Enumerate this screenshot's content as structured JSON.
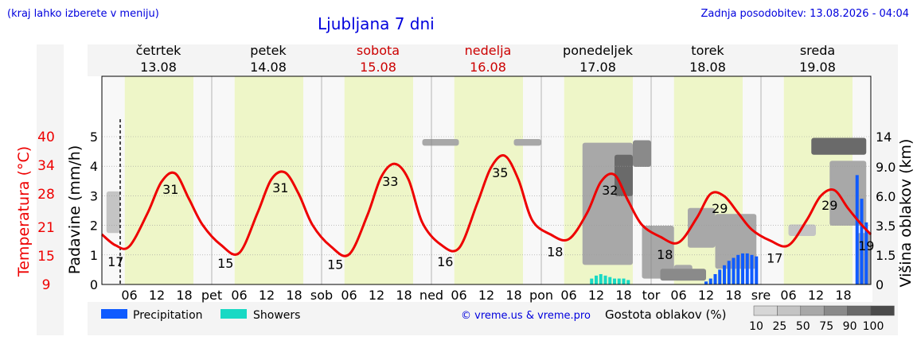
{
  "header": {
    "location_hint": "(kraj lahko izberete v meniju)",
    "title": "Ljubljana 7 dni",
    "updated": "Zadnja posodobitev: 13.08.2026 - 04:04"
  },
  "days": [
    {
      "name": "četrtek",
      "date": "13.08",
      "color": "#000000",
      "short": ""
    },
    {
      "name": "petek",
      "date": "14.08",
      "color": "#000000",
      "short": "pet"
    },
    {
      "name": "sobota",
      "date": "15.08",
      "color": "#cc0000",
      "short": "sob"
    },
    {
      "name": "nedelja",
      "date": "16.08",
      "color": "#cc0000",
      "short": "ned"
    },
    {
      "name": "ponedeljek",
      "date": "17.08",
      "color": "#000000",
      "short": "pon"
    },
    {
      "name": "torek",
      "date": "18.08",
      "color": "#000000",
      "short": "tor"
    },
    {
      "name": "sreda",
      "date": "19.08",
      "color": "#000000",
      "short": "sre"
    }
  ],
  "weather_icons": [
    [
      "moon-cloud-icon",
      "sun-icon",
      "sun-icon",
      "moon-icon"
    ],
    [
      "moon-icon",
      "sun-icon",
      "sun-icon",
      "moon-icon"
    ],
    [
      "moon-icon",
      "sun-icon",
      "sun-icon",
      "moon-icon"
    ],
    [
      "moon-cloud-icon",
      "sun-icon",
      "sun-cloud-icon",
      "moon-cloud-icon"
    ],
    [
      "moon-cloud-icon",
      "sun-storm-icon",
      "sun-storm-icon",
      "moon-storm-icon"
    ],
    [
      "fog-icon",
      "sun-cloud-icon",
      "sun-rain-cloud-icon",
      "rain-cloud-icon"
    ],
    [
      "moon-cloud-icon",
      "sun-cloud-icon",
      "sun-cloud-icon",
      "rain-cloud-icon"
    ]
  ],
  "chart_data": {
    "type": "line",
    "x_tick_labels": [
      "06",
      "12",
      "18"
    ],
    "left_axis_temp": {
      "label": "Temperatura (°C)",
      "ticks": [
        9,
        15,
        21,
        28,
        34,
        40
      ],
      "color": "#ee0000"
    },
    "left_axis_precip": {
      "label": "Padavine (mm/h)",
      "ticks": [
        0,
        1,
        2,
        3,
        4,
        5
      ],
      "ylim": [
        0,
        5
      ]
    },
    "right_axis_cloud": {
      "label": "Višina oblakov (km)",
      "ticks": [
        "0",
        "1.5",
        "3.5",
        "6.0",
        "9.0",
        "14"
      ]
    },
    "temperature_hourly": [
      [
        0,
        19.5
      ],
      [
        3,
        17.2
      ],
      [
        6,
        17.0
      ],
      [
        10,
        24.0
      ],
      [
        13,
        30.5
      ],
      [
        16,
        32.3
      ],
      [
        19,
        27.0
      ],
      [
        22,
        21.5
      ],
      [
        26,
        17.3
      ],
      [
        30,
        15.6
      ],
      [
        34,
        24.0
      ],
      [
        37,
        31.0
      ],
      [
        40,
        32.5
      ],
      [
        43,
        28.0
      ],
      [
        46,
        21.5
      ],
      [
        50,
        17.0
      ],
      [
        54,
        15.3
      ],
      [
        58,
        23.5
      ],
      [
        61,
        31.5
      ],
      [
        64,
        34.3
      ],
      [
        67,
        31.0
      ],
      [
        70,
        22.0
      ],
      [
        74,
        17.4
      ],
      [
        78,
        16.6
      ],
      [
        82,
        26.0
      ],
      [
        85,
        33.5
      ],
      [
        88,
        36.0
      ],
      [
        91,
        31.0
      ],
      [
        94,
        22.5
      ],
      [
        98,
        19.5
      ],
      [
        102,
        18.5
      ],
      [
        106,
        24.0
      ],
      [
        109,
        30.5
      ],
      [
        112,
        32.0
      ],
      [
        115,
        26.5
      ],
      [
        118,
        21.5
      ],
      [
        122,
        19.0
      ],
      [
        126,
        17.8
      ],
      [
        130,
        23.0
      ],
      [
        133,
        28.0
      ],
      [
        136,
        27.5
      ],
      [
        139,
        24.0
      ],
      [
        142,
        20.5
      ],
      [
        146,
        18.2
      ],
      [
        150,
        17.2
      ],
      [
        154,
        22.5
      ],
      [
        157,
        27.5
      ],
      [
        160,
        28.8
      ],
      [
        163,
        25.0
      ],
      [
        166,
        21.5
      ],
      [
        168,
        19.5
      ]
    ],
    "temperature_labels": [
      {
        "hour": 3,
        "value": "17"
      },
      {
        "hour": 15,
        "value": "31"
      },
      {
        "hour": 27,
        "value": "15"
      },
      {
        "hour": 39,
        "value": "31"
      },
      {
        "hour": 51,
        "value": "15"
      },
      {
        "hour": 63,
        "value": "33"
      },
      {
        "hour": 75,
        "value": "16"
      },
      {
        "hour": 87,
        "value": "35"
      },
      {
        "hour": 99,
        "value": "18"
      },
      {
        "hour": 111,
        "value": "32"
      },
      {
        "hour": 123,
        "value": "18"
      },
      {
        "hour": 135,
        "value": "29"
      },
      {
        "hour": 147,
        "value": "17"
      },
      {
        "hour": 159,
        "value": "29"
      },
      {
        "hour": 167,
        "value": "19"
      }
    ],
    "precipitation": [
      {
        "hour": 132,
        "value": 0.1
      },
      {
        "hour": 133,
        "value": 0.2
      },
      {
        "hour": 134,
        "value": 0.35
      },
      {
        "hour": 135,
        "value": 0.5
      },
      {
        "hour": 136,
        "value": 0.65
      },
      {
        "hour": 137,
        "value": 0.8
      },
      {
        "hour": 138,
        "value": 0.9
      },
      {
        "hour": 139,
        "value": 1.0
      },
      {
        "hour": 140,
        "value": 1.05
      },
      {
        "hour": 141,
        "value": 1.05
      },
      {
        "hour": 142,
        "value": 1.0
      },
      {
        "hour": 143,
        "value": 0.95
      },
      {
        "hour": 165,
        "value": 3.7
      },
      {
        "hour": 166,
        "value": 2.9
      },
      {
        "hour": 167,
        "value": 2.1
      }
    ],
    "showers": [
      {
        "hour": 107,
        "value": 0.2
      },
      {
        "hour": 108,
        "value": 0.3
      },
      {
        "hour": 109,
        "value": 0.35
      },
      {
        "hour": 110,
        "value": 0.3
      },
      {
        "hour": 111,
        "value": 0.25
      },
      {
        "hour": 112,
        "value": 0.2
      },
      {
        "hour": 113,
        "value": 0.2
      },
      {
        "hour": 114,
        "value": 0.2
      },
      {
        "hour": 115,
        "value": 0.15
      }
    ],
    "cloud_blocks": [
      {
        "h0": 1,
        "h1": 4,
        "km0": 3.0,
        "km1": 6.5,
        "d": 25
      },
      {
        "h0": 70,
        "h1": 78,
        "km0": 12.5,
        "km1": 13.6,
        "d": 50
      },
      {
        "h0": 90,
        "h1": 96,
        "km0": 12.5,
        "km1": 13.6,
        "d": 50
      },
      {
        "h0": 105,
        "h1": 116,
        "km0": 1.0,
        "km1": 13.0,
        "d": 50
      },
      {
        "h0": 112,
        "h1": 116,
        "km0": 6.0,
        "km1": 11.0,
        "d": 90
      },
      {
        "h0": 116,
        "h1": 120,
        "km0": 9.0,
        "km1": 13.4,
        "d": 75
      },
      {
        "h0": 118,
        "h1": 125,
        "km0": 0.3,
        "km1": 3.5,
        "d": 50
      },
      {
        "h0": 125,
        "h1": 129,
        "km0": 0.2,
        "km1": 1.0,
        "d": 50
      },
      {
        "h0": 122,
        "h1": 132,
        "km0": 0.2,
        "km1": 0.8,
        "d": 75
      },
      {
        "h0": 128,
        "h1": 134,
        "km0": 2.0,
        "km1": 5.0,
        "d": 50
      },
      {
        "h0": 134,
        "h1": 143,
        "km0": 0.8,
        "km1": 4.5,
        "d": 50
      },
      {
        "h0": 150,
        "h1": 156,
        "km0": 2.8,
        "km1": 3.6,
        "d": 25
      },
      {
        "h0": 155,
        "h1": 167,
        "km0": 11.0,
        "km1": 13.8,
        "d": 90
      },
      {
        "h0": 159,
        "h1": 167,
        "km0": 3.5,
        "km1": 10.0,
        "d": 50
      },
      {
        "h0": 165,
        "h1": 168,
        "km0": 0.0,
        "km1": 3.0,
        "d": 50
      }
    ]
  },
  "legend": {
    "precipitation": "Precipitation",
    "showers": "Showers",
    "precip_color": "#0f5bff",
    "shower_color": "#18d9c4",
    "copyright": "© vreme.us & vreme.pro",
    "cloud_density_label": "Gostota oblakov (%)",
    "density_values": [
      "10",
      "25",
      "50",
      "75",
      "90",
      "100"
    ]
  }
}
